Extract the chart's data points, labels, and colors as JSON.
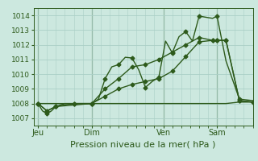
{
  "bg_color": "#cce8df",
  "grid_color": "#aacfc6",
  "line_color": "#2d5a1b",
  "marker_color": "#2d5a1b",
  "xlabel": "Pression niveau de la mer( hPa )",
  "xlabel_fontsize": 8,
  "ylim": [
    1006.5,
    1014.5
  ],
  "yticks": [
    1007,
    1008,
    1009,
    1010,
    1011,
    1012,
    1013,
    1014
  ],
  "xtick_labels": [
    "Jeu",
    "Dim",
    "Ven",
    "Sam"
  ],
  "xtick_positions": [
    0,
    24,
    56,
    80
  ],
  "vline_positions": [
    0,
    24,
    56,
    80
  ],
  "xlim": [
    -2,
    96
  ],
  "series1_x": [
    0,
    2,
    4,
    6,
    8,
    12,
    16,
    20,
    24,
    27,
    30,
    33,
    36,
    39,
    42,
    45,
    48,
    51,
    54,
    57,
    60,
    63,
    66,
    69,
    72,
    78,
    80,
    84,
    90,
    96
  ],
  "series1_y": [
    1008.0,
    1007.5,
    1007.3,
    1007.5,
    1007.8,
    1008.0,
    1008.0,
    1008.0,
    1008.0,
    1008.3,
    1009.7,
    1010.5,
    1010.65,
    1011.15,
    1011.1,
    1010.3,
    1009.1,
    1009.5,
    1009.8,
    1012.25,
    1011.45,
    1012.55,
    1012.9,
    1012.25,
    1013.95,
    1013.8,
    1013.95,
    1010.9,
    1008.3,
    1008.2
  ],
  "series2_x": [
    0,
    4,
    8,
    16,
    24,
    30,
    36,
    42,
    48,
    54,
    60,
    66,
    72,
    78,
    80,
    84,
    90,
    96
  ],
  "series2_y": [
    1008.0,
    1007.5,
    1007.8,
    1008.0,
    1008.0,
    1008.5,
    1009.0,
    1009.3,
    1009.5,
    1009.7,
    1010.2,
    1011.2,
    1012.2,
    1012.3,
    1012.3,
    1012.3,
    1008.2,
    1008.1
  ],
  "series3_x": [
    0,
    4,
    8,
    24,
    30,
    36,
    42,
    48,
    54,
    60,
    66,
    72,
    78,
    80,
    84,
    90,
    96
  ],
  "series3_y": [
    1008.0,
    1007.5,
    1007.8,
    1008.0,
    1009.0,
    1009.7,
    1010.5,
    1010.65,
    1011.0,
    1011.5,
    1012.0,
    1012.5,
    1012.3,
    1012.3,
    1012.3,
    1008.2,
    1008.1
  ],
  "series4_x": [
    0,
    24,
    56,
    72,
    78,
    80,
    84,
    90,
    96
  ],
  "series4_y": [
    1008.0,
    1008.0,
    1008.0,
    1008.0,
    1008.0,
    1008.0,
    1008.0,
    1008.1,
    1008.1
  ],
  "marker_x1": [
    0,
    6,
    12,
    24,
    30,
    36,
    42,
    48,
    54,
    57,
    63,
    69,
    72,
    78,
    84,
    90,
    96
  ],
  "marker_y1": [
    1008.0,
    1007.5,
    1008.0,
    1008.0,
    1009.7,
    1010.65,
    1011.15,
    1009.1,
    1009.8,
    1012.25,
    1012.55,
    1012.25,
    1013.95,
    1013.8,
    1010.9,
    1008.3,
    1008.2
  ],
  "marker_x2": [
    0,
    6,
    12,
    24,
    36,
    48,
    60,
    72,
    78,
    84,
    90,
    96
  ],
  "marker_y2": [
    1008.0,
    1007.5,
    1008.0,
    1008.0,
    1009.0,
    1009.5,
    1010.2,
    1012.2,
    1012.3,
    1012.3,
    1008.2,
    1008.1
  ]
}
